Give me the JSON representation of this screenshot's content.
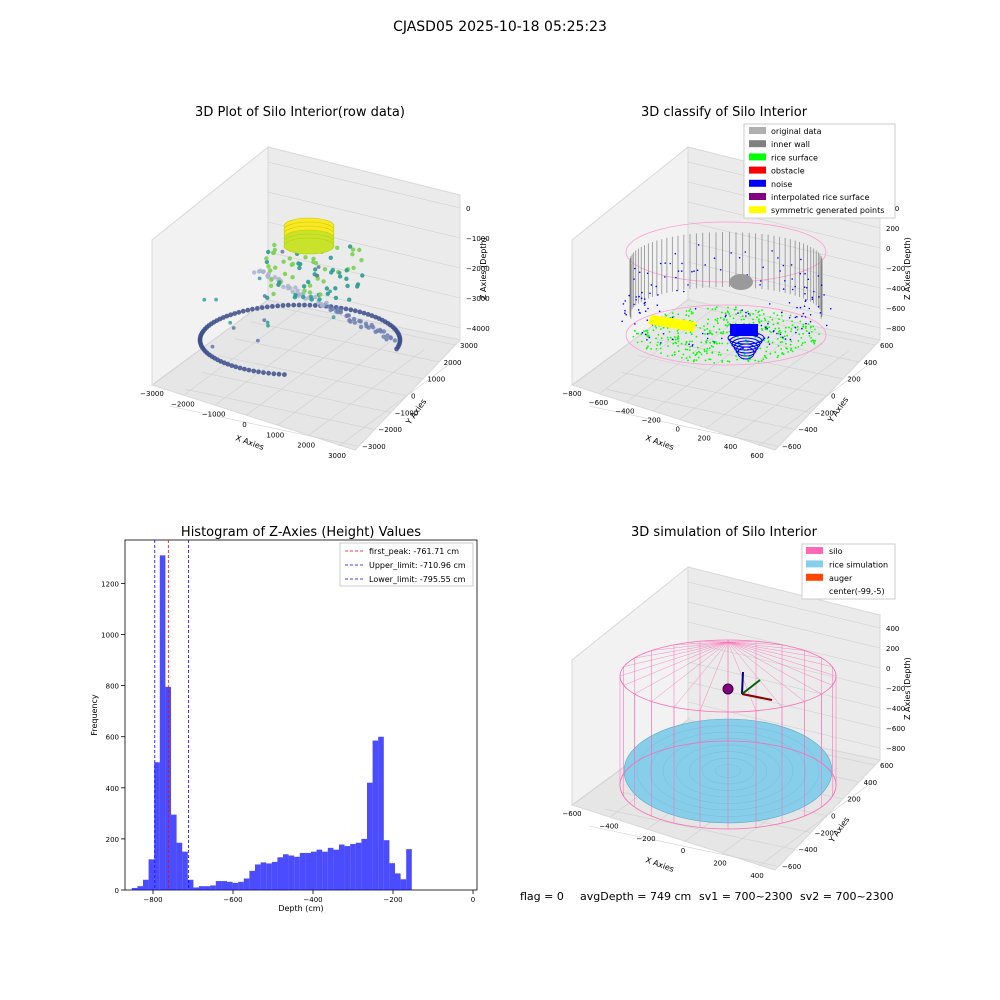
{
  "suptitle": "CJASD05 2025-10-18 05:25:23",
  "footer": {
    "flag": "flag = 0",
    "avg": "avgDepth = 749 cm",
    "sv1": "sv1 = 700~2300",
    "sv2": "sv2 = 700~2300"
  },
  "chart_data": [
    {
      "type": "scatter",
      "title": "3D Plot of Silo Interior(row data)",
      "xlabel": "X Axies",
      "ylabel": "Y Axies",
      "zlabel": "Z Axies (Depth)",
      "x_ticks": [
        "−3000",
        "−2000",
        "−1000",
        "0",
        "1000",
        "2000",
        "3000"
      ],
      "y_ticks": [
        "−3000",
        "−2000",
        "−1000",
        "0",
        "1000",
        "2000",
        "3000"
      ],
      "z_ticks": [
        "0",
        "−1000",
        "−2000",
        "−3000",
        "−4000"
      ],
      "colormap": [
        "#3b4d8a",
        "#2a9d8f",
        "#7ad151",
        "#fde725"
      ]
    },
    {
      "type": "scatter",
      "title": "3D classify of Silo Interior",
      "xlabel": "X Axies",
      "ylabel": "Y Axies",
      "zlabel": "Z Axies (Depth)",
      "x_ticks": [
        "−800",
        "−600",
        "−400",
        "−200",
        "0",
        "200",
        "400",
        "600"
      ],
      "y_ticks": [
        "−600",
        "−400",
        "−200",
        "0",
        "200",
        "400",
        "600"
      ],
      "z_ticks": [
        "400",
        "200",
        "0",
        "−200",
        "−400",
        "−600",
        "−800"
      ],
      "legend_position": "top-right",
      "legend": [
        {
          "label": "original data",
          "color": "#b0b0b0"
        },
        {
          "label": "inner wall",
          "color": "#808080"
        },
        {
          "label": "rice surface",
          "color": "#00ff00"
        },
        {
          "label": "obstacle",
          "color": "#ff0000"
        },
        {
          "label": "noise",
          "color": "#0000ff"
        },
        {
          "label": "interpolated rice surface",
          "color": "#800080"
        },
        {
          "label": "symmetric generated points",
          "color": "#ffff00"
        }
      ]
    },
    {
      "type": "bar",
      "title": "Histogram of Z-Axies (Height) Values",
      "xlabel": "Depth (cm)",
      "ylabel": "Frequency",
      "xlim": [
        -870,
        10
      ],
      "ylim": [
        0,
        1370
      ],
      "x_ticks": [
        -800,
        -600,
        -400,
        -200,
        0
      ],
      "y_ticks": [
        0,
        200,
        400,
        600,
        800,
        1000,
        1200
      ],
      "bar_color": "#0000ff",
      "bin_width": 14,
      "bin_start": -853,
      "values": [
        8,
        15,
        40,
        120,
        500,
        1310,
        795,
        295,
        185,
        150,
        40,
        10,
        15,
        15,
        18,
        35,
        35,
        32,
        28,
        32,
        45,
        75,
        100,
        108,
        104,
        110,
        128,
        140,
        135,
        130,
        145,
        145,
        150,
        158,
        150,
        165,
        158,
        178,
        172,
        180,
        185,
        200,
        420,
        585,
        600,
        195,
        105,
        65,
        42,
        160
      ],
      "legend_position": "top-right",
      "vlines": [
        {
          "x": -761.71,
          "label": "first_peak: -761.71 cm",
          "color": "#ff0000"
        },
        {
          "x": -710.96,
          "label": "Upper_limit: -710.96 cm",
          "color": "#0000ff"
        },
        {
          "x": -795.55,
          "label": "Lower_limit: -795.55 cm",
          "color": "#0000ff"
        }
      ]
    },
    {
      "type": "scatter",
      "title": "3D simulation of Silo Interior",
      "xlabel": "X Axies",
      "ylabel": "Y Axies",
      "zlabel": "Z Axies (Depth)",
      "x_ticks": [
        "−600",
        "−400",
        "−200",
        "0",
        "200",
        "400"
      ],
      "y_ticks": [
        "−600",
        "−400",
        "−200",
        "0",
        "200",
        "400",
        "600"
      ],
      "z_ticks": [
        "400",
        "200",
        "0",
        "−200",
        "−400",
        "−600",
        "−800"
      ],
      "legend_position": "top-right",
      "legend": [
        {
          "label": "silo",
          "color": "#ff69b4"
        },
        {
          "label": "rice simulation",
          "color": "#87ceeb"
        },
        {
          "label": "auger",
          "color": "#ff4500"
        },
        {
          "label": "center(-99,-5)",
          "color": ""
        }
      ]
    }
  ]
}
